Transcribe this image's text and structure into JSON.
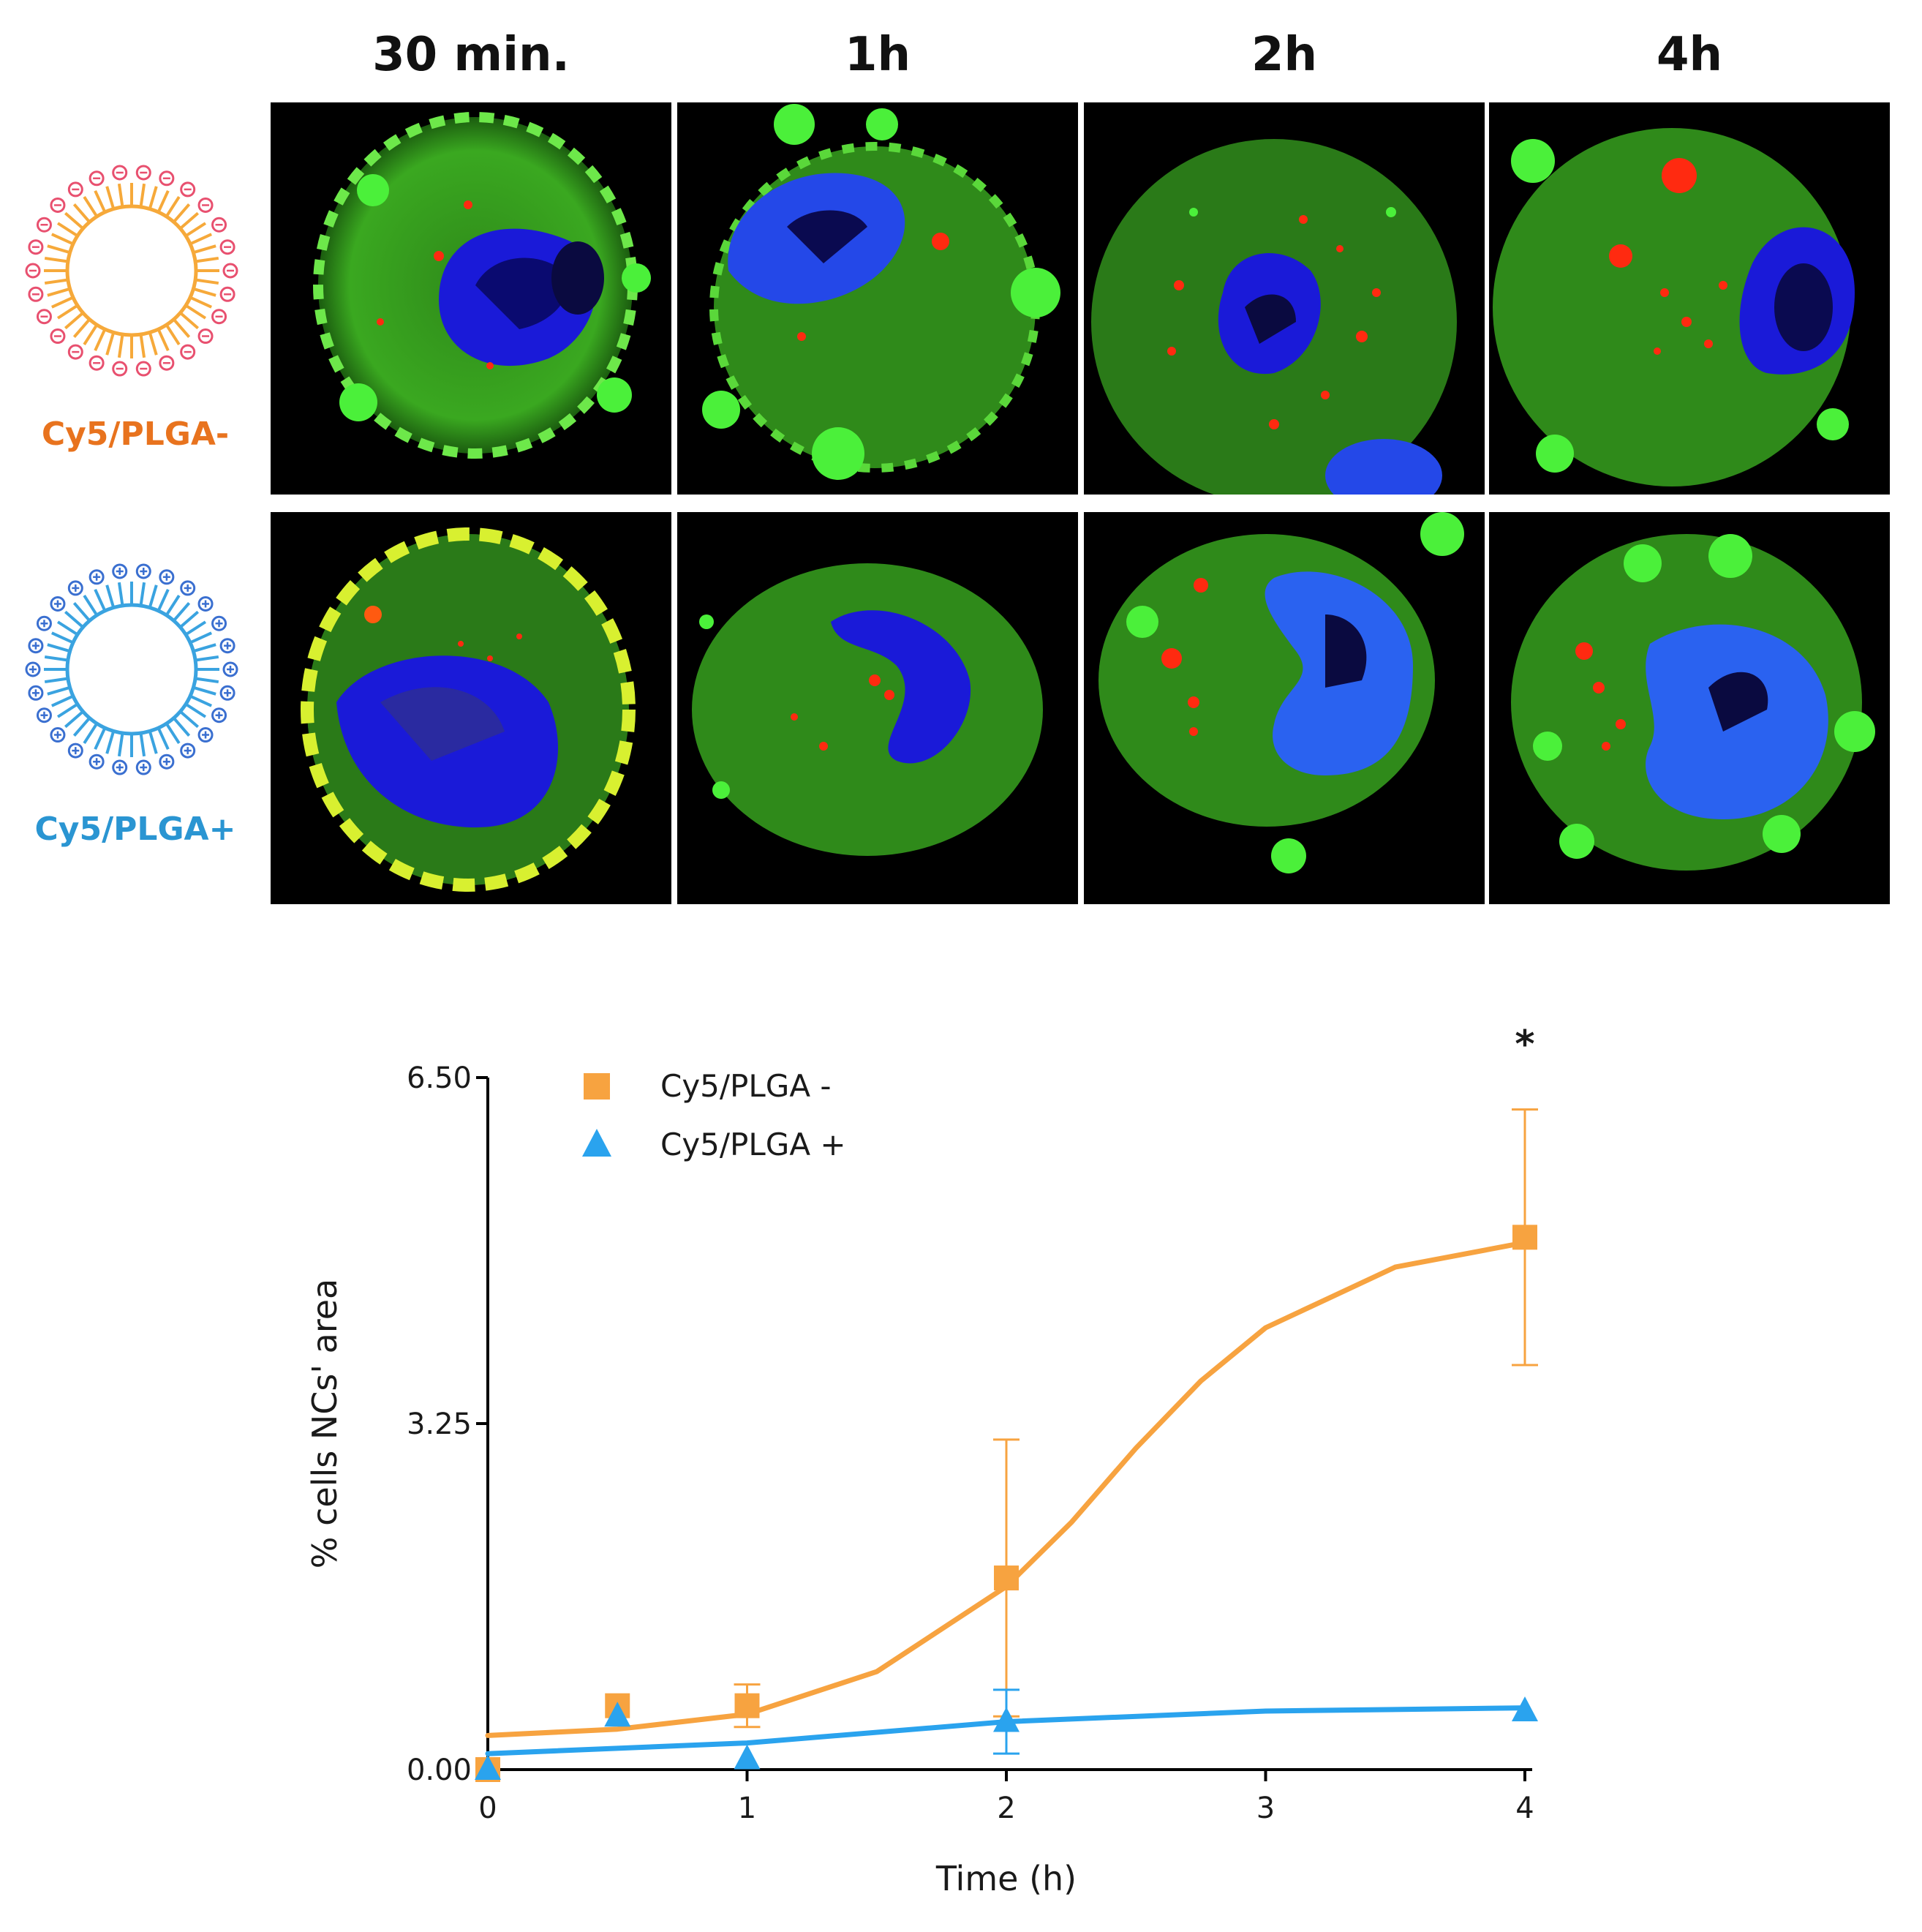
{
  "column_headers": [
    "30 min.",
    "1h",
    "2h",
    "4h"
  ],
  "rows": [
    {
      "label": "Cy5/PLGA-",
      "color": "#e8731e",
      "charge": "negative",
      "shell_color": "#f6a93a",
      "head_color": "#e8506f"
    },
    {
      "label": "Cy5/PLGA+",
      "color": "#2a95d2",
      "charge": "positive",
      "shell_color": "#3aa3e0",
      "head_color": "#3a6fd0"
    }
  ],
  "chart_data": {
    "type": "scatter",
    "xlabel": "Time (h)",
    "ylabel": "% cells NCs' area",
    "x_ticks": [
      "0",
      "1",
      "2",
      "3",
      "4"
    ],
    "y_ticks": [
      "0.00",
      "3.25",
      "6.50"
    ],
    "xlim": [
      0,
      4
    ],
    "ylim": [
      0,
      6.5
    ],
    "legend_position": "top-left",
    "annotation": "*",
    "series": [
      {
        "name": "Cy5/PLGA -",
        "marker": "square",
        "color": "#f7a340",
        "x": [
          0,
          0.5,
          1,
          2,
          4
        ],
        "y": [
          0.0,
          0.6,
          0.6,
          1.8,
          5.0
        ],
        "error": [
          0,
          0,
          0.2,
          1.3,
          1.2
        ],
        "fit": {
          "x": [
            0,
            0.5,
            1,
            1.5,
            2,
            2.25,
            2.5,
            2.75,
            3,
            3.5,
            4
          ],
          "y": [
            0.32,
            0.38,
            0.52,
            0.92,
            1.72,
            2.32,
            3.02,
            3.65,
            4.15,
            4.72,
            4.95
          ]
        }
      },
      {
        "name": "Cy5/PLGA +",
        "marker": "triangle",
        "color": "#2aa3ee",
        "x": [
          0,
          0.5,
          1,
          2,
          4
        ],
        "y": [
          0.0,
          0.5,
          0.1,
          0.45,
          0.55
        ],
        "error": [
          0,
          0,
          0,
          0.3,
          0
        ],
        "fit": {
          "x": [
            0,
            1,
            2,
            3,
            4
          ],
          "y": [
            0.15,
            0.25,
            0.45,
            0.55,
            0.58
          ]
        }
      }
    ]
  }
}
